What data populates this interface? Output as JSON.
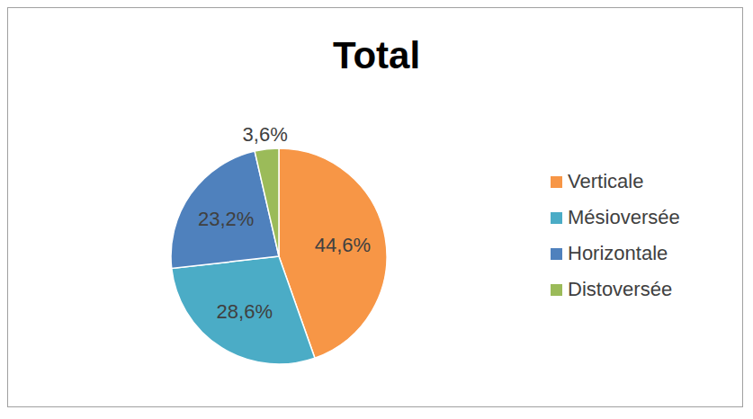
{
  "chart_data": {
    "type": "pie",
    "title": "Total",
    "categories": [
      "Verticale",
      "Mésioversée",
      "Horizontale",
      "Distoversée"
    ],
    "values": [
      44.6,
      28.6,
      23.2,
      3.6
    ],
    "value_labels": [
      "44,6%",
      "28,6%",
      "23,2%",
      "3,6%"
    ],
    "colors": [
      "#f79646",
      "#4bacc6",
      "#4f81bd",
      "#9bbb59"
    ],
    "data_labels": true,
    "legend": "right"
  }
}
